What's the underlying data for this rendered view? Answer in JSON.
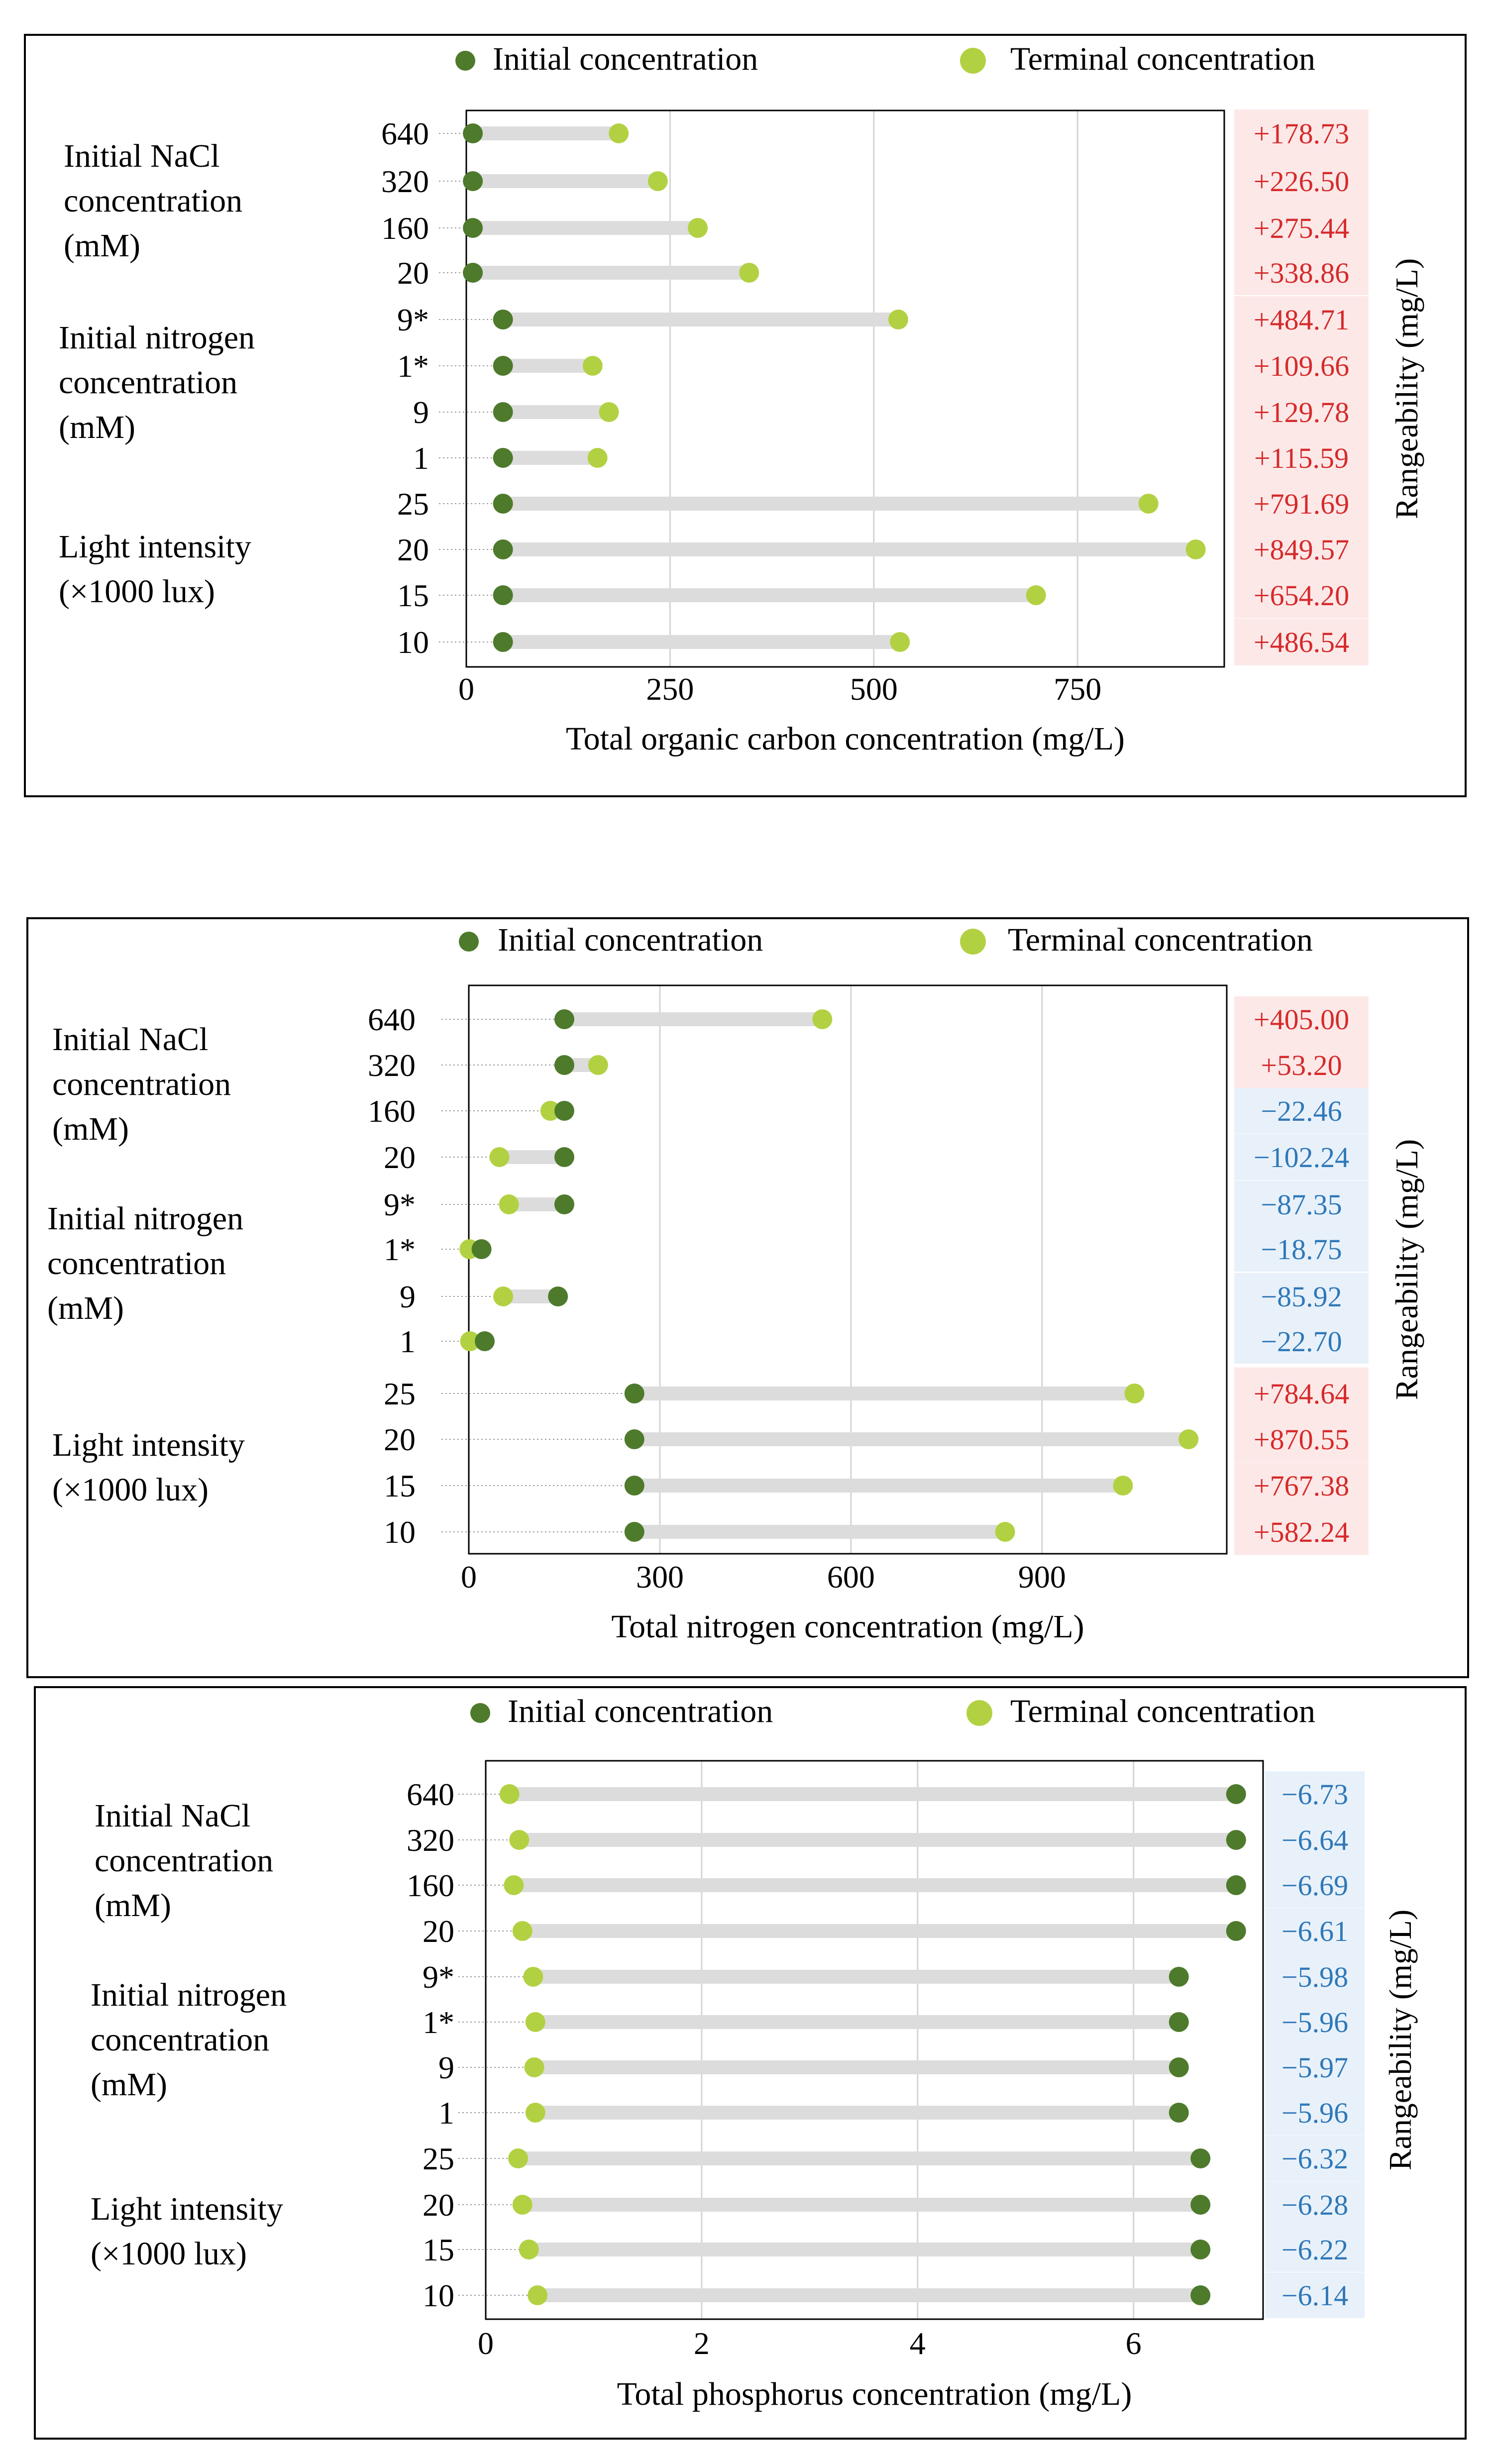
{
  "legend": {
    "initial_label": "Initial concentration",
    "terminal_label": "Terminal concentration"
  },
  "side_label": "Rangeability  (mg/L)",
  "group_labels": {
    "nacl": [
      "Initial NaCl",
      "concentration",
      "(mM)"
    ],
    "nitrogen": [
      "Initial nitrogen",
      "concentration",
      "(mM)"
    ],
    "light": [
      "Light intensity",
      "(×1000 lux)"
    ]
  },
  "row_labels": [
    "640",
    "320",
    "160",
    "20",
    "9*",
    "1*",
    "9",
    "1",
    "25",
    "20",
    "15",
    "10"
  ],
  "colors": {
    "initial": "#4e7a2c",
    "terminal": "#b2d142",
    "connector": "#dcdcdc",
    "positive_text": "#d62a2a",
    "positive_bg": "#fde8e8",
    "negative_text": "#2f78b8",
    "negative_bg": "#e8f1fa"
  },
  "chart_data": [
    {
      "type": "dumbbell",
      "title": "",
      "xlabel": "Total organic carbon concentration (mg/L)",
      "xlim": [
        0,
        930
      ],
      "xticks": [
        0,
        250,
        500,
        750
      ],
      "grid": true,
      "categories": [
        "640",
        "320",
        "160",
        "20",
        "9*",
        "1*",
        "9",
        "1",
        "25",
        "20",
        "15",
        "10"
      ],
      "series": [
        {
          "name": "Initial concentration",
          "values": [
            8,
            8,
            8,
            8,
            45,
            45,
            45,
            45,
            45,
            45,
            45,
            45
          ]
        },
        {
          "name": "Terminal concentration",
          "values": [
            187,
            235,
            284,
            347,
            530,
            155,
            175,
            161,
            837,
            895,
            699,
            532
          ]
        }
      ],
      "rangeability": [
        "+178.73",
        "+226.50",
        "+275.44",
        "+338.86",
        "+484.71",
        "+109.66",
        "+129.78",
        "+115.59",
        "+791.69",
        "+849.57",
        "+654.20",
        "+486.54"
      ],
      "rangeability_sign": [
        "pos",
        "pos",
        "pos",
        "pos",
        "pos",
        "pos",
        "pos",
        "pos",
        "pos",
        "pos",
        "pos",
        "pos"
      ]
    },
    {
      "type": "dumbbell",
      "title": "",
      "xlabel": "Total nitrogen concentration (mg/L)",
      "xlim": [
        0,
        1190
      ],
      "xticks": [
        0,
        300,
        600,
        900
      ],
      "grid": true,
      "categories": [
        "640",
        "320",
        "160",
        "20",
        "9*",
        "1*",
        "9",
        "1",
        "25",
        "20",
        "15",
        "10"
      ],
      "series": [
        {
          "name": "Initial concentration",
          "values": [
            150,
            150,
            150,
            150,
            150,
            20,
            140,
            25,
            260,
            260,
            260,
            260
          ]
        },
        {
          "name": "Terminal concentration",
          "values": [
            555,
            203,
            128,
            48,
            63,
            1,
            54,
            2,
            1045,
            1130,
            1027,
            842
          ]
        }
      ],
      "rangeability": [
        "+405.00",
        "+53.20",
        "−22.46",
        "−102.24",
        "−87.35",
        "−18.75",
        "−85.92",
        "−22.70",
        "+784.64",
        "+870.55",
        "+767.38",
        "+582.24"
      ],
      "rangeability_sign": [
        "pos",
        "pos",
        "neg",
        "neg",
        "neg",
        "neg",
        "neg",
        "neg",
        "pos",
        "pos",
        "pos",
        "pos"
      ]
    },
    {
      "type": "dumbbell",
      "title": "",
      "xlabel": "Total phosphorus concentration (mg/L)",
      "xlim": [
        0,
        7.2
      ],
      "xticks": [
        0,
        2,
        4,
        6
      ],
      "grid": true,
      "categories": [
        "640",
        "320",
        "160",
        "20",
        "9*",
        "1*",
        "9",
        "1",
        "25",
        "20",
        "15",
        "10"
      ],
      "series": [
        {
          "name": "Initial concentration",
          "values": [
            6.95,
            6.95,
            6.95,
            6.95,
            6.42,
            6.42,
            6.42,
            6.42,
            6.62,
            6.62,
            6.62,
            6.62
          ]
        },
        {
          "name": "Terminal concentration",
          "values": [
            0.22,
            0.31,
            0.26,
            0.34,
            0.44,
            0.46,
            0.45,
            0.46,
            0.3,
            0.34,
            0.4,
            0.48
          ]
        }
      ],
      "rangeability": [
        "−6.73",
        "−6.64",
        "−6.69",
        "−6.61",
        "−5.98",
        "−5.96",
        "−5.97",
        "−5.96",
        "−6.32",
        "−6.28",
        "−6.22",
        "−6.14"
      ],
      "rangeability_sign": [
        "neg",
        "neg",
        "neg",
        "neg",
        "neg",
        "neg",
        "neg",
        "neg",
        "neg",
        "neg",
        "neg",
        "neg"
      ]
    }
  ]
}
